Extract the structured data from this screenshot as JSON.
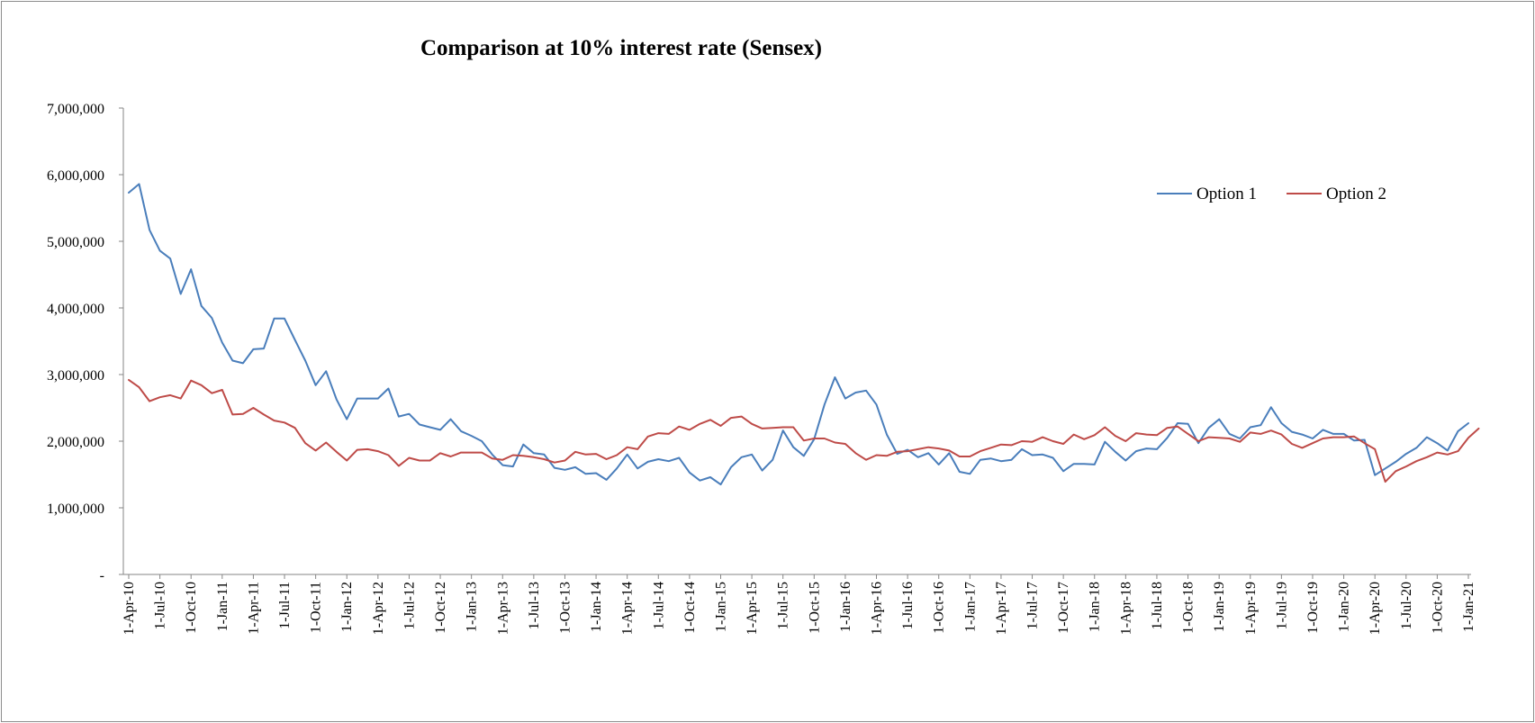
{
  "chart_data": {
    "type": "line",
    "title": "Comparison at 10% interest rate (Sensex)",
    "xlabel": "",
    "ylabel": "",
    "ylim": [
      0,
      7000000
    ],
    "y_ticks": [
      0,
      1000000,
      2000000,
      3000000,
      4000000,
      5000000,
      6000000,
      7000000
    ],
    "y_tick_labels": [
      "-",
      "1,000,000",
      "2,000,000",
      "3,000,000",
      "4,000,000",
      "5,000,000",
      "6,000,000",
      "7,000,000"
    ],
    "x_tick_labels": [
      "1-Apr-10",
      "1-Jul-10",
      "1-Oct-10",
      "1-Jan-11",
      "1-Apr-11",
      "1-Jul-11",
      "1-Oct-11",
      "1-Jan-12",
      "1-Apr-12",
      "1-Jul-12",
      "1-Oct-12",
      "1-Jan-13",
      "1-Apr-13",
      "1-Jul-13",
      "1-Oct-13",
      "1-Jan-14",
      "1-Apr-14",
      "1-Jul-14",
      "1-Oct-14",
      "1-Jan-15",
      "1-Apr-15",
      "1-Jul-15",
      "1-Oct-15",
      "1-Jan-16",
      "1-Apr-16",
      "1-Jul-16",
      "1-Oct-16",
      "1-Jan-17",
      "1-Apr-17",
      "1-Jul-17",
      "1-Oct-17",
      "1-Jan-18",
      "1-Apr-18",
      "1-Jul-18",
      "1-Oct-18",
      "1-Jan-19",
      "1-Apr-19",
      "1-Jul-19",
      "1-Oct-19",
      "1-Jan-20",
      "1-Apr-20",
      "1-Jul-20",
      "1-Oct-20",
      "1-Jan-21"
    ],
    "grid": false,
    "legend_position": "right",
    "series": [
      {
        "name": "Option 1",
        "color": "#4a7ebb",
        "values": [
          5730000,
          5860000,
          5170000,
          4860000,
          4740000,
          4210000,
          4580000,
          4030000,
          3850000,
          3480000,
          3210000,
          3170000,
          3380000,
          3390000,
          3840000,
          3840000,
          3520000,
          3210000,
          2840000,
          3050000,
          2630000,
          2330000,
          2640000,
          2640000,
          2640000,
          2790000,
          2370000,
          2410000,
          2250000,
          2210000,
          2170000,
          2330000,
          2150000,
          2080000,
          2000000,
          1800000,
          1640000,
          1620000,
          1950000,
          1820000,
          1800000,
          1600000,
          1570000,
          1610000,
          1510000,
          1520000,
          1420000,
          1590000,
          1800000,
          1590000,
          1690000,
          1730000,
          1700000,
          1750000,
          1530000,
          1410000,
          1460000,
          1350000,
          1610000,
          1760000,
          1800000,
          1560000,
          1720000,
          2160000,
          1910000,
          1780000,
          2030000,
          2550000,
          2960000,
          2640000,
          2730000,
          2760000,
          2550000,
          2100000,
          1810000,
          1870000,
          1760000,
          1820000,
          1650000,
          1820000,
          1540000,
          1510000,
          1720000,
          1740000,
          1700000,
          1720000,
          1880000,
          1790000,
          1800000,
          1750000,
          1550000,
          1660000,
          1660000,
          1650000,
          1990000,
          1840000,
          1710000,
          1850000,
          1890000,
          1880000,
          2050000,
          2270000,
          2260000,
          1970000,
          2200000,
          2330000,
          2110000,
          2040000,
          2210000,
          2240000,
          2510000,
          2270000,
          2140000,
          2100000,
          2040000,
          2170000,
          2110000,
          2110000,
          2010000,
          2020000,
          1490000,
          1590000,
          1690000,
          1810000,
          1900000,
          2060000,
          1970000,
          1860000,
          2150000,
          2270000
        ]
      },
      {
        "name": "Option 2",
        "color": "#be4b48",
        "values": [
          2920000,
          2810000,
          2600000,
          2660000,
          2690000,
          2640000,
          2910000,
          2840000,
          2720000,
          2770000,
          2400000,
          2410000,
          2500000,
          2400000,
          2310000,
          2280000,
          2200000,
          1970000,
          1860000,
          1980000,
          1840000,
          1710000,
          1870000,
          1880000,
          1850000,
          1790000,
          1630000,
          1750000,
          1710000,
          1710000,
          1820000,
          1770000,
          1830000,
          1830000,
          1830000,
          1740000,
          1720000,
          1790000,
          1780000,
          1760000,
          1730000,
          1680000,
          1710000,
          1840000,
          1800000,
          1810000,
          1730000,
          1790000,
          1910000,
          1880000,
          2070000,
          2120000,
          2110000,
          2220000,
          2170000,
          2260000,
          2320000,
          2230000,
          2350000,
          2370000,
          2260000,
          2190000,
          2200000,
          2210000,
          2210000,
          2010000,
          2040000,
          2040000,
          1980000,
          1960000,
          1820000,
          1720000,
          1790000,
          1780000,
          1840000,
          1850000,
          1880000,
          1910000,
          1890000,
          1860000,
          1770000,
          1770000,
          1850000,
          1900000,
          1950000,
          1940000,
          2000000,
          1990000,
          2060000,
          2000000,
          1960000,
          2100000,
          2030000,
          2090000,
          2210000,
          2080000,
          2000000,
          2120000,
          2100000,
          2090000,
          2200000,
          2220000,
          2110000,
          2000000,
          2060000,
          2050000,
          2040000,
          1990000,
          2130000,
          2110000,
          2160000,
          2100000,
          1960000,
          1900000,
          1970000,
          2040000,
          2060000,
          2060000,
          2070000,
          1970000,
          1880000,
          1390000,
          1550000,
          1620000,
          1700000,
          1760000,
          1830000,
          1800000,
          1850000,
          2050000,
          2190000
        ]
      }
    ]
  }
}
